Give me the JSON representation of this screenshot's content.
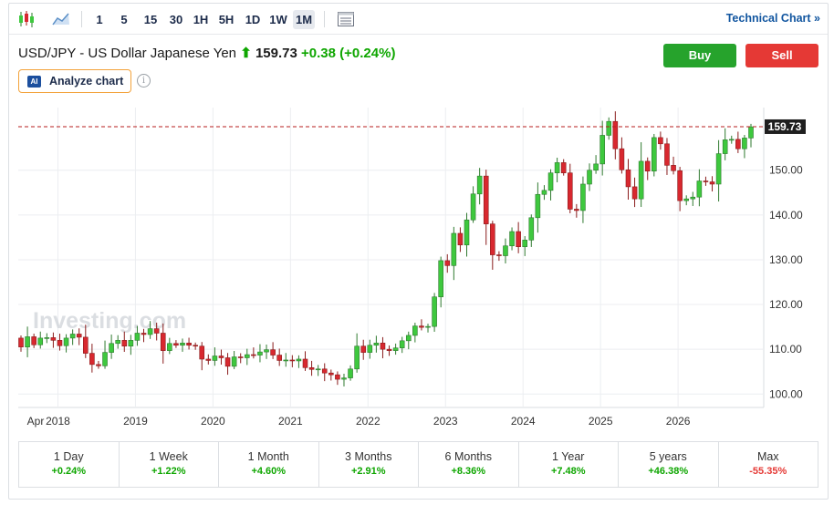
{
  "toolbar": {
    "timeframes": [
      "1",
      "5",
      "15",
      "30",
      "1H",
      "5H",
      "1D",
      "1W",
      "1M"
    ],
    "active_timeframe": "1M",
    "technical_chart_label": "Technical Chart »"
  },
  "header": {
    "name": "USD/JPY - US Dollar Japanese Yen",
    "last": "159.73",
    "change": "+0.38",
    "change_pct": "(+0.24%)",
    "buy_label": "Buy",
    "sell_label": "Sell",
    "ai_badge": "AI",
    "analyze_label": "Analyze chart",
    "info_glyph": "i"
  },
  "chart_data": {
    "type": "candlestick",
    "watermark": "Investing.com",
    "current_price_label": "159.73",
    "current_price": 159.73,
    "ylim": [
      97,
      164
    ],
    "y_ticks": [
      "100.00",
      "110.00",
      "120.00",
      "130.00",
      "140.00",
      "150.00"
    ],
    "x_ticks": [
      "Apr",
      "2018",
      "2019",
      "2020",
      "2021",
      "2022",
      "2023",
      "2024",
      "2025",
      "2026"
    ],
    "up_color": "#3ec83e",
    "down_color": "#d8282f",
    "grid": true,
    "closes": [
      110.5,
      112.8,
      111.0,
      112.5,
      112.6,
      112.0,
      110.8,
      112.5,
      113.4,
      112.7,
      109.1,
      106.6,
      106.3,
      109.3,
      111.3,
      112.0,
      110.7,
      112.0,
      113.6,
      113.3,
      114.6,
      113.6,
      109.7,
      111.3,
      110.9,
      111.4,
      110.9,
      110.7,
      107.8,
      107.5,
      108.5,
      108.1,
      106.2,
      108.3,
      108.1,
      108.8,
      108.7,
      109.4,
      109.9,
      108.7,
      107.5,
      107.6,
      107.4,
      107.8,
      105.9,
      105.5,
      105.6,
      104.7,
      104.3,
      103.3,
      103.6,
      105.6,
      110.7,
      109.3,
      110.9,
      111.4,
      110.0,
      109.7,
      110.3,
      111.9,
      113.1,
      115.2,
      114.9,
      115.1,
      121.7,
      129.8,
      128.7,
      135.9,
      133.3,
      138.9,
      144.7,
      148.7,
      138.0,
      131.1,
      130.9,
      133.1,
      136.3,
      132.9,
      134.4,
      139.4,
      144.6,
      145.5,
      149.4,
      151.7,
      149.4,
      141.3,
      141.0,
      146.9,
      150.0,
      151.4,
      157.8,
      160.9,
      154.8,
      150.1,
      146.3,
      143.6,
      152.0,
      149.8,
      157.3,
      155.9,
      151.1,
      149.9,
      143.2,
      143.6,
      144.0,
      147.6,
      147.4,
      146.9,
      153.7,
      156.8,
      156.9,
      154.8,
      157.2,
      159.7
    ],
    "opens": [
      112.5,
      110.5,
      112.8,
      111.0,
      112.5,
      112.6,
      112.0,
      110.8,
      112.5,
      113.4,
      112.7,
      109.1,
      106.6,
      106.3,
      109.3,
      111.3,
      112.0,
      110.7,
      112.0,
      113.6,
      113.3,
      114.6,
      113.6,
      109.7,
      111.3,
      110.9,
      111.4,
      110.9,
      110.7,
      107.8,
      107.5,
      108.5,
      108.1,
      106.2,
      108.3,
      108.1,
      108.8,
      108.7,
      109.4,
      109.9,
      108.7,
      107.5,
      107.6,
      107.4,
      107.8,
      105.9,
      105.5,
      105.6,
      104.7,
      104.3,
      103.3,
      103.6,
      105.6,
      110.7,
      109.3,
      110.9,
      111.4,
      110.0,
      109.7,
      110.3,
      111.9,
      113.1,
      115.2,
      114.9,
      115.1,
      121.7,
      129.8,
      128.7,
      135.9,
      133.3,
      138.9,
      144.7,
      148.7,
      138.0,
      131.1,
      130.9,
      133.1,
      136.3,
      132.9,
      134.4,
      139.4,
      144.6,
      145.5,
      149.4,
      151.7,
      149.4,
      141.3,
      141.0,
      146.9,
      150.0,
      151.4,
      157.8,
      160.9,
      154.8,
      150.1,
      146.3,
      143.6,
      152.0,
      149.8,
      157.3,
      155.9,
      151.1,
      149.9,
      143.2,
      143.6,
      144.0,
      147.6,
      147.4,
      146.9,
      153.7,
      156.8,
      156.9,
      154.8,
      157.2
    ]
  },
  "performance": [
    {
      "label": "1 Day",
      "value": "+0.24%",
      "positive": true
    },
    {
      "label": "1 Week",
      "value": "+1.22%",
      "positive": true
    },
    {
      "label": "1 Month",
      "value": "+4.60%",
      "positive": true
    },
    {
      "label": "3 Months",
      "value": "+2.91%",
      "positive": true
    },
    {
      "label": "6 Months",
      "value": "+8.36%",
      "positive": true
    },
    {
      "label": "1 Year",
      "value": "+7.48%",
      "positive": true
    },
    {
      "label": "5 years",
      "value": "+46.38%",
      "positive": true
    },
    {
      "label": "Max",
      "value": "-55.35%",
      "positive": false
    }
  ]
}
